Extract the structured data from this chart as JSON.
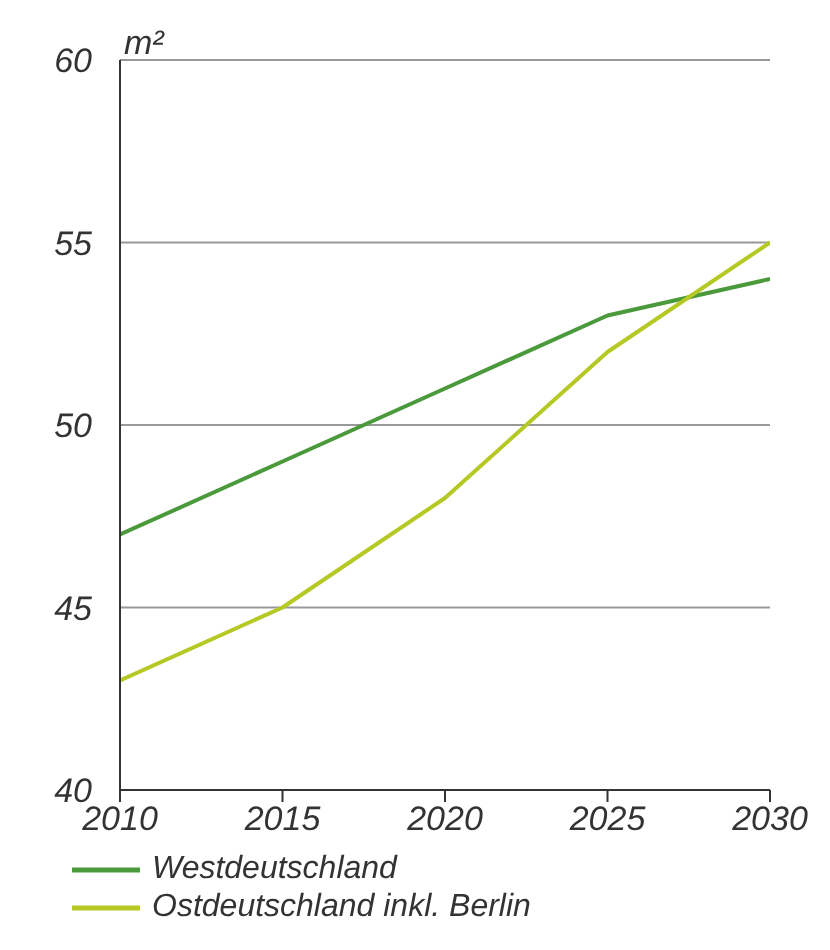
{
  "chart_data": {
    "type": "line",
    "ylabel": "m²",
    "x": [
      2010,
      2015,
      2020,
      2025,
      2030
    ],
    "series": [
      {
        "name": "Westdeutschland",
        "color": "#4a9a3c",
        "values": [
          47,
          49,
          51,
          53,
          54
        ]
      },
      {
        "name": "Ostdeutschland inkl. Berlin",
        "color": "#b5c824",
        "values": [
          43,
          45,
          48,
          52,
          55
        ]
      }
    ],
    "xlim": [
      2010,
      2030
    ],
    "xticks": [
      2010,
      2015,
      2020,
      2025,
      2030
    ],
    "ylim": [
      40,
      60
    ],
    "yticks": [
      40,
      45,
      50,
      55,
      60
    ],
    "grid": "y",
    "legend": "bottom",
    "marker": "none",
    "line_style": "solid"
  }
}
